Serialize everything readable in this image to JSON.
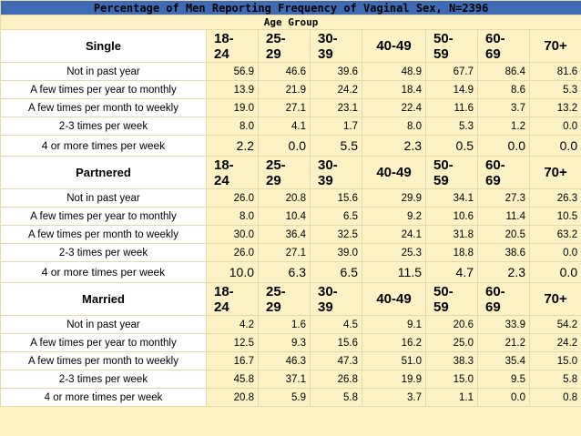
{
  "title": "Percentage of Men Reporting Frequency of Vaginal Sex, N=2396",
  "subtitle": "Age Group",
  "age_groups": [
    [
      "18-",
      "24"
    ],
    [
      "25-",
      "29"
    ],
    [
      "30-",
      "39"
    ],
    [
      "40-49",
      ""
    ],
    [
      "50-",
      "59"
    ],
    [
      "60-",
      "69"
    ],
    [
      "70+",
      ""
    ]
  ],
  "sections": [
    {
      "label": "Single",
      "rows": [
        {
          "label": "Not in past year",
          "values": [
            "56.9",
            "46.6",
            "39.6",
            "48.9",
            "67.7",
            "86.4",
            "81.6"
          ]
        },
        {
          "label": "A few times per year to monthly",
          "values": [
            "13.9",
            "21.9",
            "24.2",
            "18.4",
            "14.9",
            "8.6",
            "5.3"
          ]
        },
        {
          "label": "A few times per month to weekly",
          "values": [
            "19.0",
            "27.1",
            "23.1",
            "22.4",
            "11.6",
            "3.7",
            "13.2"
          ]
        },
        {
          "label": "2-3 times per week",
          "values": [
            "8.0",
            "4.1",
            "1.7",
            "8.0",
            "5.3",
            "1.2",
            "0.0"
          ]
        },
        {
          "label": "4 or more times per week",
          "values": [
            "2.2",
            "0.0",
            "5.5",
            "2.3",
            "0.5",
            "0.0",
            "0.0"
          ],
          "big": true
        }
      ]
    },
    {
      "label": "Partnered",
      "rows": [
        {
          "label": "Not in past year",
          "values": [
            "26.0",
            "20.8",
            "15.6",
            "29.9",
            "34.1",
            "27.3",
            "26.3"
          ]
        },
        {
          "label": "A few times per year to monthly",
          "values": [
            "8.0",
            "10.4",
            "6.5",
            "9.2",
            "10.6",
            "11.4",
            "10.5"
          ]
        },
        {
          "label": "A few times per month to weekly",
          "values": [
            "30.0",
            "36.4",
            "32.5",
            "24.1",
            "31.8",
            "20.5",
            "63.2"
          ]
        },
        {
          "label": "2-3 times per week",
          "values": [
            "26.0",
            "27.1",
            "39.0",
            "25.3",
            "18.8",
            "38.6",
            "0.0"
          ]
        },
        {
          "label": "4 or more times per week",
          "values": [
            "10.0",
            "6.3",
            "6.5",
            "11.5",
            "4.7",
            "2.3",
            "0.0"
          ],
          "big": true
        }
      ]
    },
    {
      "label": "Married",
      "rows": [
        {
          "label": "Not in past year",
          "values": [
            "4.2",
            "1.6",
            "4.5",
            "9.1",
            "20.6",
            "33.9",
            "54.2"
          ]
        },
        {
          "label": "A few times per year to monthly",
          "values": [
            "12.5",
            "9.3",
            "15.6",
            "16.2",
            "25.0",
            "21.2",
            "24.2"
          ]
        },
        {
          "label": "A few times per month to weekly",
          "values": [
            "16.7",
            "46.3",
            "47.3",
            "51.0",
            "38.3",
            "35.4",
            "15.0"
          ]
        },
        {
          "label": "2-3 times per week",
          "values": [
            "45.8",
            "37.1",
            "26.8",
            "19.9",
            "15.0",
            "9.5",
            "5.8"
          ]
        },
        {
          "label": "4 or more times per week",
          "values": [
            "20.8",
            "5.9",
            "5.8",
            "3.7",
            "1.1",
            "0.0",
            "0.8"
          ]
        }
      ]
    }
  ]
}
